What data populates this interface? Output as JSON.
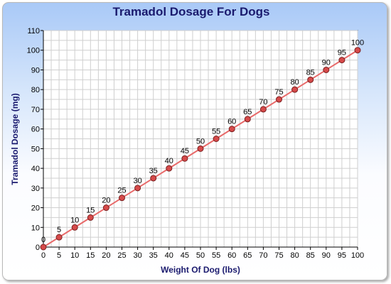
{
  "chart_data": {
    "type": "line",
    "title": "Tramadol Dosage For Dogs",
    "xlabel": "Weight Of Dog (lbs)",
    "ylabel": "Tramadol Dosage (mg)",
    "xlim": [
      0,
      100
    ],
    "ylim": [
      0,
      110
    ],
    "xticks": [
      0,
      5,
      10,
      15,
      20,
      25,
      30,
      35,
      40,
      45,
      50,
      55,
      60,
      65,
      70,
      75,
      80,
      85,
      90,
      95,
      100
    ],
    "yticks": [
      0,
      10,
      20,
      30,
      40,
      50,
      60,
      70,
      80,
      90,
      100,
      110
    ],
    "grid": true,
    "series": [
      {
        "x": [
          0,
          5,
          10,
          15,
          20,
          25,
          30,
          35,
          40,
          45,
          50,
          55,
          60,
          65,
          70,
          75,
          80,
          85,
          90,
          95,
          100
        ],
        "values": [
          0,
          5,
          10,
          15,
          20,
          25,
          30,
          35,
          40,
          45,
          50,
          55,
          60,
          65,
          70,
          75,
          80,
          85,
          90,
          95,
          100
        ],
        "labels": [
          "0",
          "5",
          "10",
          "15",
          "20",
          "25",
          "30",
          "35",
          "40",
          "45",
          "50",
          "55",
          "60",
          "65",
          "70",
          "75",
          "80",
          "85",
          "90",
          "95",
          "100"
        ],
        "line_color": "#e86a6a",
        "marker_color": "#d64a4a"
      }
    ]
  }
}
